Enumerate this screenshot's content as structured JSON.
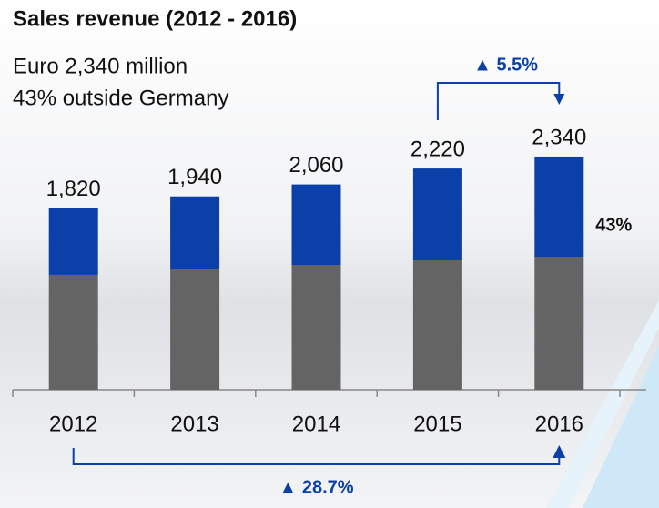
{
  "chart_data": {
    "type": "stacked_bar",
    "title": "Sales revenue (2012 - 2016)",
    "subtitle": [
      "Euro 2,340 million",
      "43% outside Germany"
    ],
    "categories": [
      "2012",
      "2013",
      "2014",
      "2015",
      "2016"
    ],
    "series": [
      {
        "color": "#646464",
        "values": [
          1152,
          1207,
          1252,
          1298,
          1334
        ]
      },
      {
        "color": "#0a40a8",
        "values": [
          668,
          733,
          808,
          922,
          1006
        ]
      }
    ],
    "total_labels": [
      "1,820",
      "1,940",
      "2,060",
      "2,220",
      "2,340"
    ],
    "ylim": [
      0,
      2400
    ],
    "annotations": [
      "▲ 5.5%",
      "▲ 28.7%",
      "43%"
    ]
  }
}
